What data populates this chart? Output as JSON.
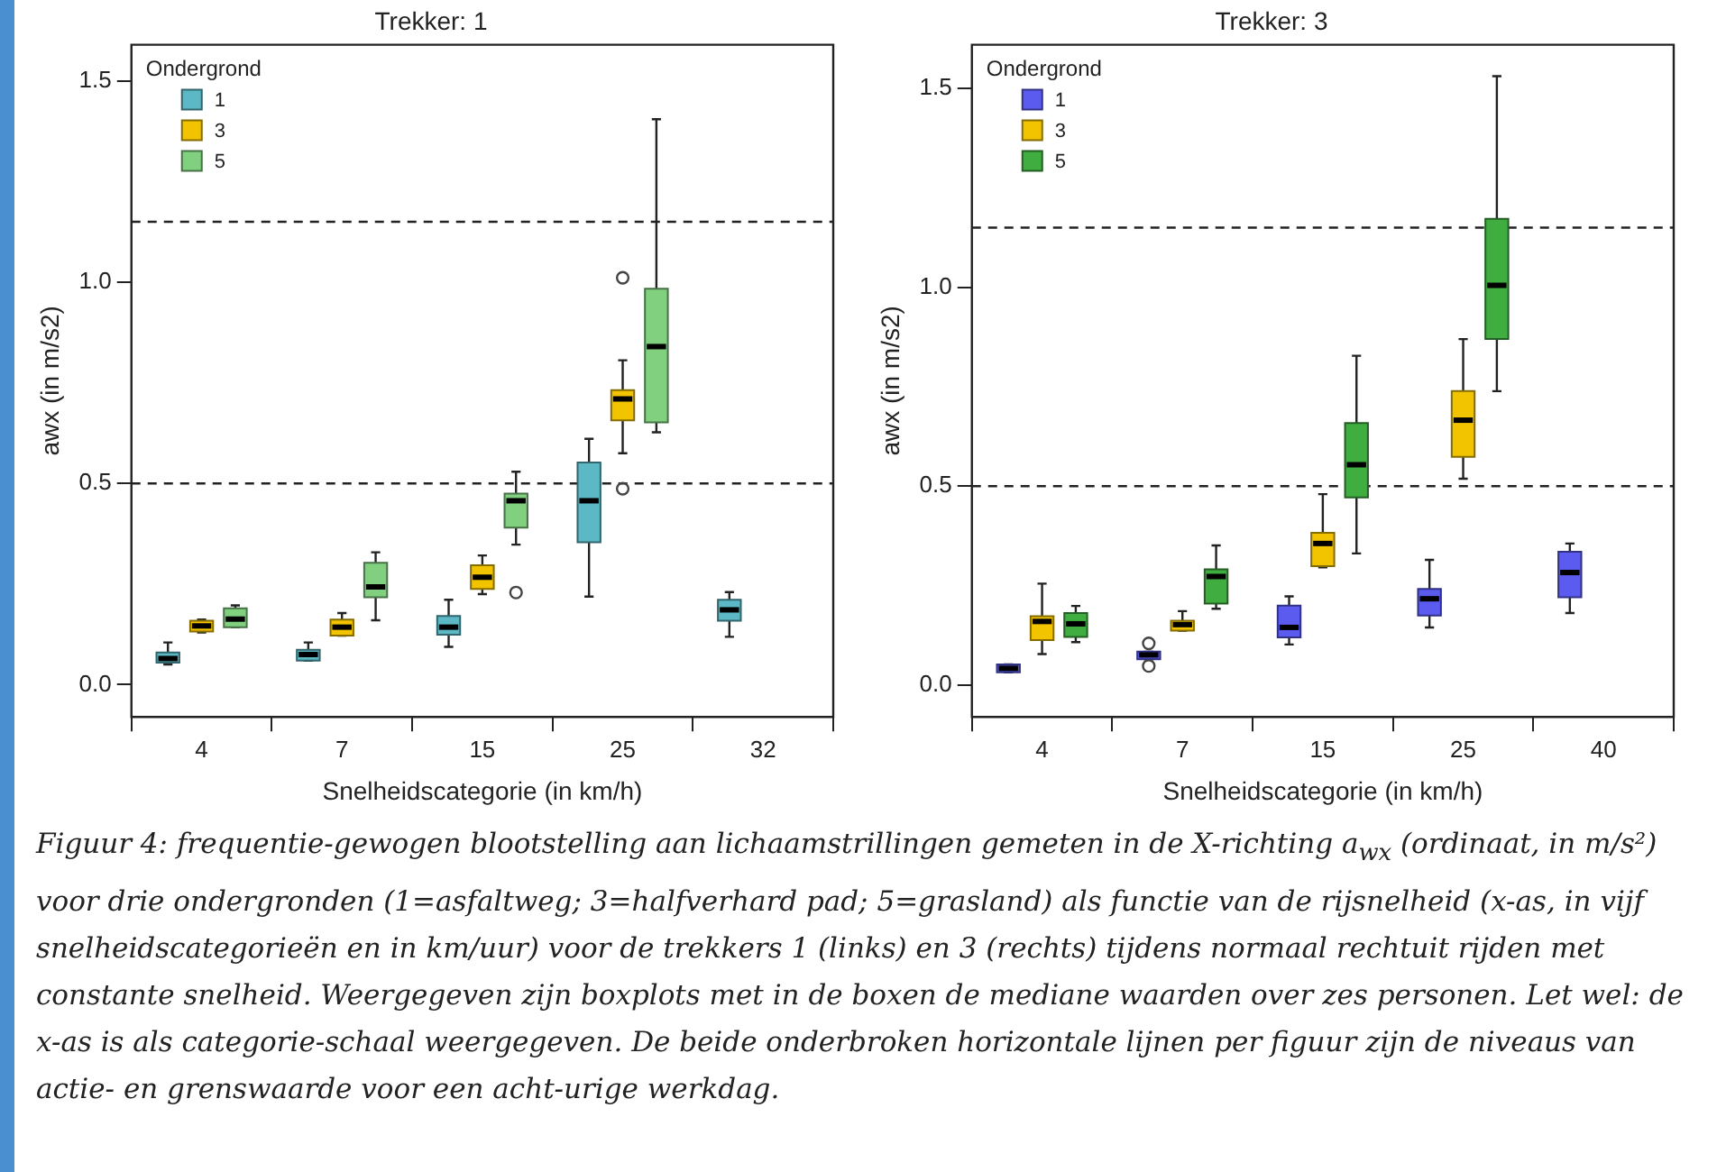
{
  "chart_data": [
    {
      "type": "box",
      "title": "Trekker: 1",
      "xlabel": "Snelheidscategorie (in km/h)",
      "ylabel": "awx (in m/s2)",
      "legend_title": "Ondergrond",
      "legend": "top left",
      "grid": false,
      "categories": [
        "4",
        "7",
        "15",
        "25",
        "32"
      ],
      "ylim": [
        -0.08,
        1.59
      ],
      "yticks": [
        {
          "value": 0,
          "label": "0.0"
        },
        {
          "value": 0.5,
          "label": "0.5"
        },
        {
          "value": 1,
          "label": "1.0"
        },
        {
          "value": 1.5,
          "label": "1.5"
        }
      ],
      "ref_lines": [
        {
          "axis": "y",
          "value": 0.5,
          "color": "#222222",
          "line_style": "dashed"
        },
        {
          "axis": "y",
          "value": 1.15,
          "color": "#222222",
          "line_style": "dashed"
        }
      ],
      "annotations": [
        "Figuur 4: frequentie-gewogen blootstelling aan lichaamstrillingen gemeten in de X-richting a$_{wx}$ (ordinaat, in m/s²) voor drie ondergronden (1=asfaltweg; 3=halfverhard pad; 5=grasland) als functie van de rijsnelheid (x-as, in vijf snelheidscategorieën en in km/uur) voor de trekkers 1 (links) en 3 (rechts) tijdens normaal rechtuit rijden met constante snelheid. Weergegeven zijn boxplots met in de boxen de mediane waarden over zes personen. Let wel: de x-as is als categorie-schaal weergegeven. De beide onderbroken horizontale lijnen per figuur zijn de niveaus van actie- en grenswaarde voor een acht-urige werkdag."
      ],
      "series": [
        {
          "name": "1",
          "color": "#5bb8c4",
          "boxes": [
            {
              "low": 0.05,
              "q1": 0.055,
              "median": 0.065,
              "q3": 0.08,
              "high": 0.105
            },
            {
              "low": 0.06,
              "q1": 0.06,
              "median": 0.075,
              "q3": 0.087,
              "high": 0.105
            },
            {
              "low": 0.094,
              "q1": 0.124,
              "median": 0.143,
              "q3": 0.171,
              "high": 0.211
            },
            {
              "low": 0.219,
              "q1": 0.354,
              "median": 0.457,
              "q3": 0.552,
              "high": 0.611
            },
            {
              "low": 0.119,
              "q1": 0.159,
              "median": 0.186,
              "q3": 0.211,
              "high": 0.23
            }
          ]
        },
        {
          "name": "3",
          "color": "#f2c400",
          "boxes": [
            {
              "low": 0.13,
              "q1": 0.132,
              "median": 0.146,
              "q3": 0.159,
              "high": 0.162
            },
            {
              "low": 0.122,
              "q1": 0.122,
              "median": 0.143,
              "q3": 0.162,
              "high": 0.178
            },
            {
              "low": 0.225,
              "q1": 0.238,
              "median": 0.267,
              "q3": 0.297,
              "high": 0.321
            },
            {
              "low": 0.575,
              "q1": 0.657,
              "median": 0.71,
              "q3": 0.732,
              "high": 0.806,
              "outliers": [
                1.011,
                0.487
              ]
            },
            null
          ]
        },
        {
          "name": "5",
          "color": "#80d080",
          "boxes": [
            {
              "low": 0.143,
              "q1": 0.143,
              "median": 0.163,
              "q3": 0.19,
              "high": 0.197
            },
            {
              "low": 0.16,
              "q1": 0.217,
              "median": 0.243,
              "q3": 0.303,
              "high": 0.329
            },
            {
              "low": 0.348,
              "q1": 0.39,
              "median": 0.457,
              "q3": 0.475,
              "high": 0.529,
              "outliers": [
                0.229
              ]
            },
            {
              "low": 0.627,
              "q1": 0.652,
              "median": 0.84,
              "q3": 0.984,
              "high": 1.405
            },
            null
          ]
        }
      ]
    },
    {
      "type": "box",
      "title": "Trekker: 3",
      "xlabel": "Snelheidscategorie (in km/h)",
      "ylabel": "awx (in m/s2)",
      "legend_title": "Ondergrond",
      "legend": "top left",
      "grid": false,
      "categories": [
        "4",
        "7",
        "15",
        "25",
        "40"
      ],
      "ylim": [
        -0.08,
        1.61
      ],
      "yticks": [
        {
          "value": 0,
          "label": "0.0"
        },
        {
          "value": 0.5,
          "label": "0.5"
        },
        {
          "value": 1,
          "label": "1.0"
        },
        {
          "value": 1.5,
          "label": "1.5"
        }
      ],
      "ref_lines": [
        {
          "axis": "y",
          "value": 0.5,
          "color": "#222222",
          "line_style": "dashed"
        },
        {
          "axis": "y",
          "value": 1.15,
          "color": "#222222",
          "line_style": "dashed"
        }
      ],
      "series": [
        {
          "name": "1",
          "color": "#5b5bf0",
          "boxes": [
            {
              "low": 0.032,
              "q1": 0.032,
              "median": 0.042,
              "q3": 0.052,
              "high": 0.052
            },
            {
              "low": 0.065,
              "q1": 0.065,
              "median": 0.076,
              "q3": 0.084,
              "high": 0.084,
              "outliers": [
                0.105,
                0.048
              ]
            },
            {
              "low": 0.102,
              "q1": 0.12,
              "median": 0.145,
              "q3": 0.2,
              "high": 0.223
            },
            {
              "low": 0.145,
              "q1": 0.175,
              "median": 0.217,
              "q3": 0.242,
              "high": 0.315
            },
            {
              "low": 0.181,
              "q1": 0.221,
              "median": 0.283,
              "q3": 0.335,
              "high": 0.356
            }
          ]
        },
        {
          "name": "3",
          "color": "#f2c400",
          "boxes": [
            {
              "low": 0.078,
              "q1": 0.113,
              "median": 0.16,
              "q3": 0.173,
              "high": 0.255
            },
            {
              "low": 0.137,
              "q1": 0.137,
              "median": 0.152,
              "q3": 0.162,
              "high": 0.186
            },
            {
              "low": 0.296,
              "q1": 0.299,
              "median": 0.356,
              "q3": 0.383,
              "high": 0.48
            },
            {
              "low": 0.519,
              "q1": 0.574,
              "median": 0.666,
              "q3": 0.739,
              "high": 0.87
            },
            null
          ]
        },
        {
          "name": "5",
          "color": "#40ad40",
          "boxes": [
            {
              "low": 0.108,
              "q1": 0.121,
              "median": 0.154,
              "q3": 0.181,
              "high": 0.199
            },
            {
              "low": 0.192,
              "q1": 0.205,
              "median": 0.273,
              "q3": 0.291,
              "high": 0.351
            },
            {
              "low": 0.331,
              "q1": 0.472,
              "median": 0.554,
              "q3": 0.659,
              "high": 0.828
            },
            {
              "low": 0.739,
              "q1": 0.87,
              "median": 1.005,
              "q3": 1.172,
              "high": 1.531
            },
            null
          ]
        }
      ]
    }
  ]
}
